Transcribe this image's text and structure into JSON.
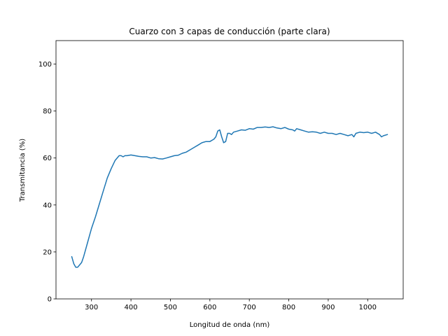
{
  "chart_data": {
    "type": "line",
    "title": "Cuarzo con 3 capas de conducción (parte clara)",
    "xlabel": "Longitud de onda (nm)",
    "ylabel": "Transmitancia (%)",
    "xlim": [
      210,
      1090
    ],
    "ylim": [
      0,
      110
    ],
    "xticks": [
      300,
      400,
      500,
      600,
      700,
      800,
      900,
      1000
    ],
    "yticks": [
      0,
      20,
      40,
      60,
      80,
      100
    ],
    "grid": false,
    "legend": "none",
    "series": [
      {
        "color": "#1f77b4",
        "x": [
          250,
          255,
          260,
          265,
          270,
          275,
          280,
          285,
          290,
          295,
          300,
          310,
          320,
          330,
          340,
          350,
          360,
          370,
          375,
          380,
          385,
          390,
          400,
          410,
          420,
          430,
          440,
          450,
          460,
          470,
          480,
          490,
          500,
          510,
          520,
          530,
          540,
          550,
          560,
          570,
          580,
          590,
          600,
          610,
          615,
          620,
          625,
          630,
          635,
          640,
          645,
          650,
          655,
          660,
          670,
          680,
          690,
          700,
          710,
          720,
          730,
          740,
          750,
          760,
          770,
          780,
          790,
          800,
          810,
          815,
          820,
          830,
          840,
          850,
          860,
          870,
          880,
          890,
          900,
          910,
          920,
          930,
          940,
          950,
          960,
          965,
          970,
          980,
          990,
          1000,
          1010,
          1020,
          1030,
          1035,
          1040,
          1050
        ],
        "y": [
          18,
          15,
          13.5,
          13.5,
          14.5,
          15.5,
          18,
          21,
          24,
          27,
          30,
          35,
          40.5,
          46,
          51.5,
          55.5,
          59,
          61,
          61,
          60.5,
          61,
          61,
          61.3,
          61,
          60.7,
          60.5,
          60.5,
          60,
          60.2,
          59.7,
          59.6,
          60,
          60.5,
          61,
          61.2,
          62,
          62.5,
          63.5,
          64.5,
          65.5,
          66.5,
          67,
          67,
          68,
          69,
          71.5,
          72,
          69,
          66.5,
          67,
          70.5,
          70.5,
          70,
          71,
          71.5,
          72,
          71.8,
          72.5,
          72.3,
          73,
          73,
          73.2,
          73,
          73.3,
          72.8,
          72.5,
          73,
          72.3,
          72,
          71.5,
          72.5,
          72,
          71.5,
          71,
          71.2,
          71,
          70.5,
          71,
          70.5,
          70.5,
          70,
          70.5,
          70,
          69.5,
          70,
          69,
          70.5,
          71,
          70.8,
          71,
          70.5,
          71,
          70,
          69,
          69.5,
          70
        ]
      }
    ]
  }
}
